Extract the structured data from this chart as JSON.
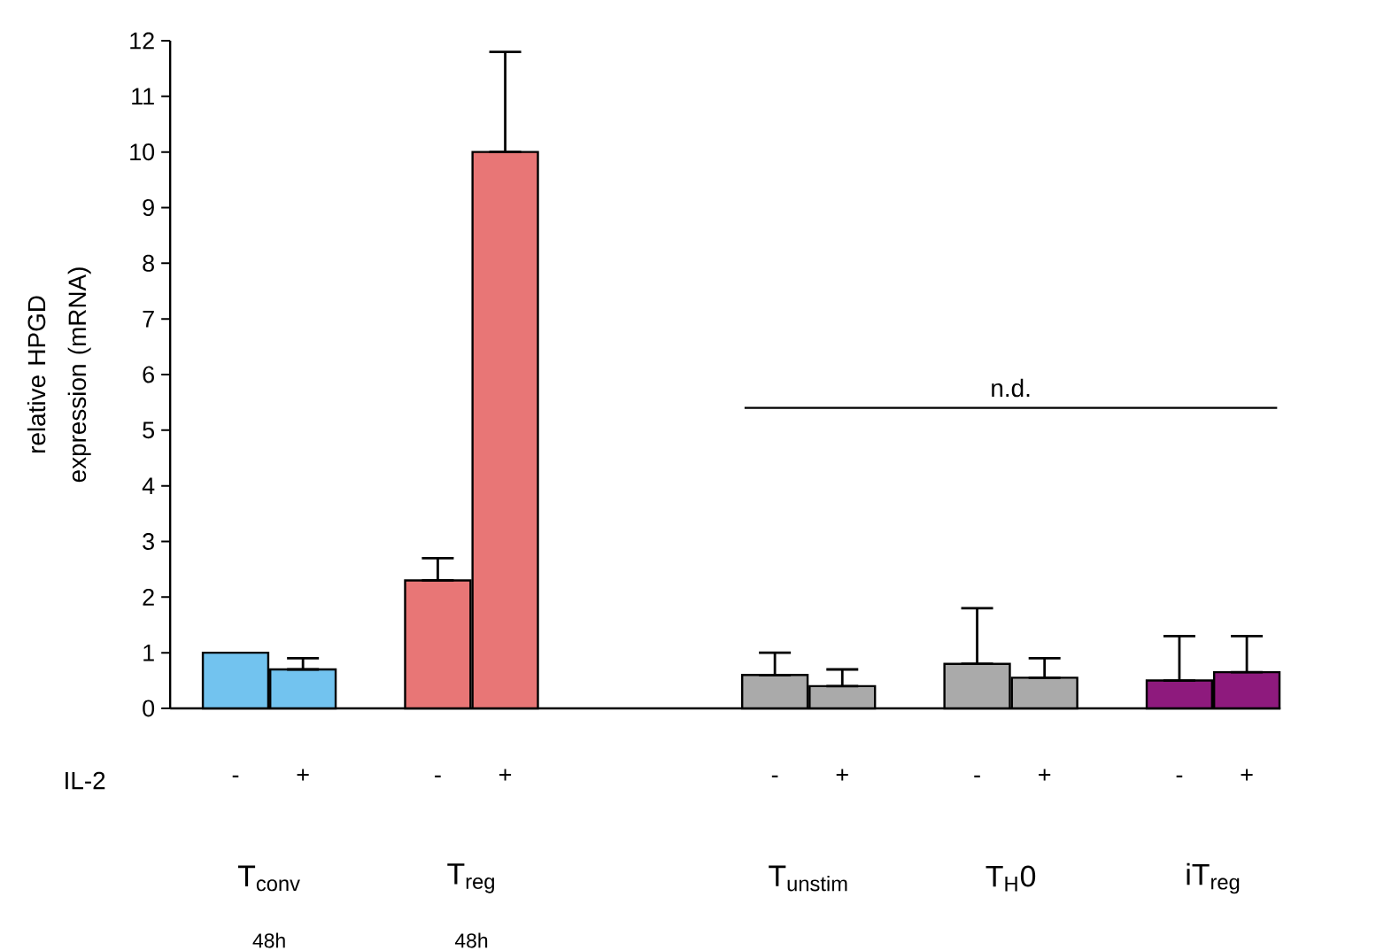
{
  "chart_data": {
    "type": "bar",
    "ylabel": "relative HPGD expression (mRNA)",
    "xlabel": "IL-2",
    "categories": [
      "-",
      "+",
      null,
      "-",
      "+",
      null,
      null,
      null,
      "-",
      "+",
      null,
      "-",
      "+",
      null,
      "-",
      "+"
    ],
    "values": [
      1.0,
      0.7,
      null,
      2.3,
      10.0,
      null,
      null,
      null,
      0.6,
      0.4,
      null,
      0.8,
      0.55,
      null,
      0.5,
      0.65
    ],
    "errors": [
      null,
      [
        0.7,
        0.9
      ],
      null,
      [
        2.3,
        2.7
      ],
      [
        10.0,
        11.8
      ],
      null,
      null,
      null,
      [
        0.6,
        1.0
      ],
      [
        0.4,
        0.7
      ],
      null,
      [
        0.8,
        1.8
      ],
      [
        0.55,
        0.9
      ],
      null,
      [
        0.5,
        1.3
      ],
      [
        0.65,
        1.3
      ]
    ],
    "colors": [
      "#72c3ef",
      "#72c3ef",
      null,
      "#e87676",
      "#e87676",
      null,
      null,
      null,
      "#aaaaaa",
      "#aaaaaa",
      null,
      "#aaaaaa",
      "#aaaaaa",
      null,
      "#8e1a7d",
      "#8e1a7d"
    ],
    "ylim": [
      0,
      12
    ],
    "yticks": [
      0,
      1,
      2,
      3,
      4,
      5,
      6,
      7,
      8,
      9,
      10,
      11,
      12
    ],
    "ref_lines": [
      {
        "axis": "y",
        "value": 5.4,
        "label": "n.d."
      }
    ],
    "annotations": [
      "T$_{conv}$",
      "48h",
      "T$_{reg}$",
      "48h",
      "T$_{unstim}$",
      "T$_{H}$0",
      "iT$_{reg}$"
    ],
    "grid": false
  }
}
